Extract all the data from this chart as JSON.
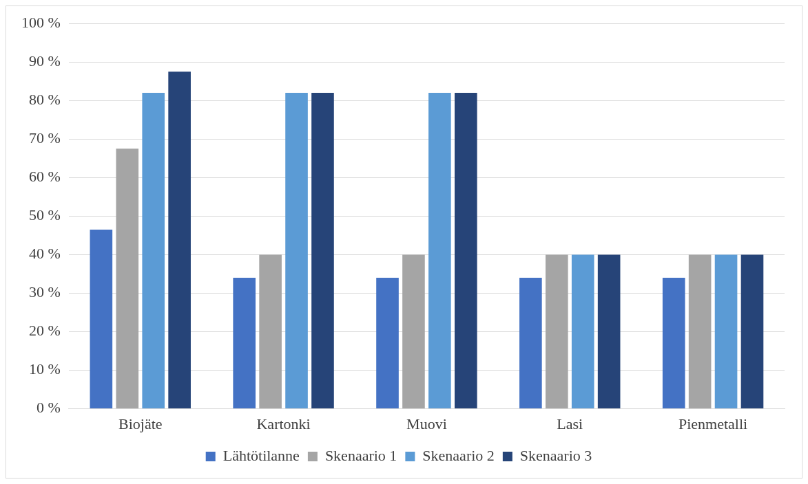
{
  "chart_data": {
    "type": "bar",
    "categories": [
      "Biojäte",
      "Kartonki",
      "Muovi",
      "Lasi",
      "Pienmetalli"
    ],
    "series": [
      {
        "name": "Lähtötilanne",
        "color": "#4472c4",
        "values": [
          46.5,
          34,
          34,
          34,
          34
        ]
      },
      {
        "name": "Skenaario 1",
        "color": "#a5a5a5",
        "values": [
          67.5,
          40,
          40,
          40,
          40
        ]
      },
      {
        "name": "Skenaario 2",
        "color": "#5b9bd5",
        "values": [
          82,
          82,
          82,
          40,
          40
        ]
      },
      {
        "name": "Skenaario 3",
        "color": "#264478",
        "values": [
          87.5,
          82,
          82,
          40,
          40
        ]
      }
    ],
    "ylim": [
      0,
      100
    ],
    "yticks": [
      {
        "value": 0,
        "label": "0 %"
      },
      {
        "value": 10,
        "label": "10 %"
      },
      {
        "value": 20,
        "label": "20 %"
      },
      {
        "value": 30,
        "label": "30 %"
      },
      {
        "value": 40,
        "label": "40 %"
      },
      {
        "value": 50,
        "label": "50 %"
      },
      {
        "value": 60,
        "label": "60 %"
      },
      {
        "value": 70,
        "label": "70 %"
      },
      {
        "value": 80,
        "label": "80 %"
      },
      {
        "value": 90,
        "label": "90 %"
      },
      {
        "value": 100,
        "label": "100 %"
      }
    ],
    "grid": "y",
    "legend": "bottom"
  }
}
